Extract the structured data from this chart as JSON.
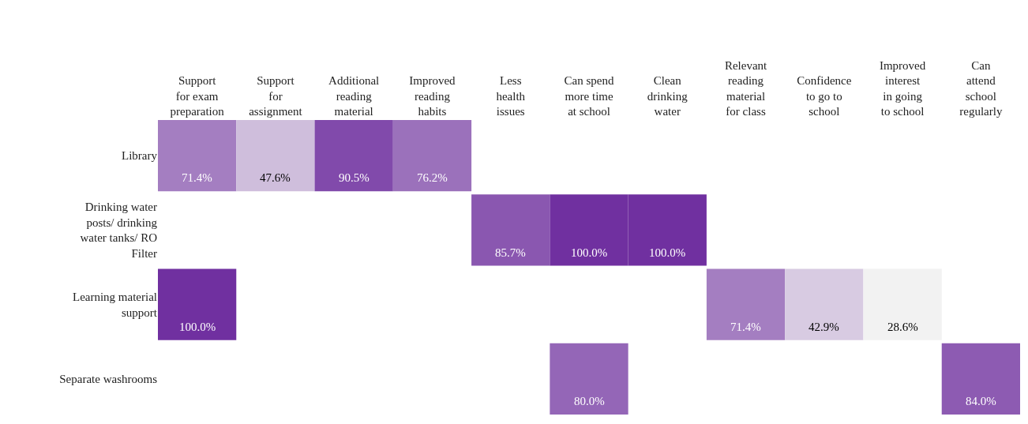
{
  "chart_data": {
    "type": "heatmap",
    "categories": [
      "Support for exam preparation",
      "Support for assignment",
      "Additional reading material",
      "Improved reading habits",
      "Less health issues",
      "Can spend more time at school",
      "Clean drinking water",
      "Relevant reading material for class",
      "Confidence to go to school",
      "Improved interest in going to school",
      "Can attend school regularly"
    ],
    "y_categories": [
      "Library",
      "Drinking water posts/ drinking water tanks/ RO Filter",
      "Learning material support",
      "Separate washrooms"
    ],
    "cells": [
      [
        71.4,
        47.6,
        90.5,
        76.2,
        null,
        null,
        null,
        null,
        null,
        null,
        null
      ],
      [
        null,
        null,
        null,
        null,
        85.7,
        100.0,
        100.0,
        null,
        null,
        null,
        null
      ],
      [
        100.0,
        null,
        null,
        null,
        null,
        null,
        null,
        71.4,
        42.9,
        28.6,
        null
      ],
      [
        null,
        null,
        null,
        null,
        null,
        80.0,
        null,
        null,
        null,
        null,
        84.0
      ]
    ],
    "cell_labels": [
      [
        "71.4%",
        "47.6%",
        "90.5%",
        "76.2%",
        null,
        null,
        null,
        null,
        null,
        null,
        null
      ],
      [
        null,
        null,
        null,
        null,
        "85.7%",
        "100.0%",
        "100.0%",
        null,
        null,
        null,
        null
      ],
      [
        "100.0%",
        null,
        null,
        null,
        null,
        null,
        null,
        "71.4%",
        "42.9%",
        "28.6%",
        null
      ],
      [
        null,
        null,
        null,
        null,
        null,
        "80.0%",
        null,
        null,
        null,
        null,
        "84.0%"
      ]
    ]
  }
}
